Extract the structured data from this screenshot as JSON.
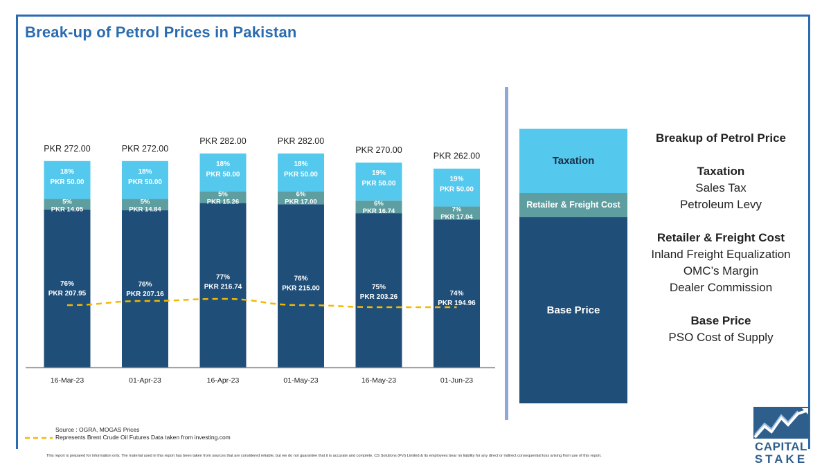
{
  "header": {
    "title": "Break-up of Petrol Prices in Pakistan"
  },
  "colors": {
    "taxation": "#55c8ed",
    "retailer": "#5f9ea0",
    "base": "#1f4e79",
    "brent_line": "#f5b800",
    "title": "#2b6cb0"
  },
  "chart_data": {
    "type": "bar",
    "stacked": true,
    "categories": [
      "16-Mar-23",
      "01-Apr-23",
      "16-Apr-23",
      "01-May-23",
      "16-May-23",
      "01-Jun-23"
    ],
    "totals_labels": [
      "PKR 272.00",
      "PKR 272.00",
      "PKR 282.00",
      "PKR 282.00",
      "PKR 270.00",
      "PKR 262.00"
    ],
    "series": [
      {
        "name": "Base Price",
        "values": [
          207.95,
          207.16,
          216.74,
          215.0,
          203.26,
          194.96
        ],
        "value_labels": [
          "PKR 207.95",
          "PKR 207.16",
          "PKR 216.74",
          "PKR 215.00",
          "PKR 203.26",
          "PKR 194.96"
        ],
        "pct_labels": [
          "76%",
          "76%",
          "77%",
          "76%",
          "75%",
          "74%"
        ]
      },
      {
        "name": "Retailer & Freight Cost",
        "values": [
          14.05,
          14.84,
          15.26,
          17.0,
          16.74,
          17.04
        ],
        "value_labels": [
          "PKR 14.05",
          "PKR 14.84",
          "PKR 15.26",
          "PKR 17.00",
          "PKR 16.74",
          "PKR 17.04"
        ],
        "pct_labels": [
          "5%",
          "5%",
          "5%",
          "6%",
          "6%",
          "7%"
        ]
      },
      {
        "name": "Taxation",
        "values": [
          50.0,
          50.0,
          50.0,
          50.0,
          50.0,
          50.0
        ],
        "value_labels": [
          "PKR 50.00",
          "PKR 50.00",
          "PKR 50.00",
          "PKR 50.00",
          "PKR 50.00",
          "PKR 50.00"
        ],
        "pct_labels": [
          "18%",
          "18%",
          "18%",
          "18%",
          "19%",
          "19%"
        ]
      }
    ],
    "brent_line": {
      "style": "dashed",
      "relative_level": [
        0.3,
        0.32,
        0.33,
        0.3,
        0.29,
        0.29
      ]
    },
    "ylim": [
      0,
      300
    ],
    "grid": false
  },
  "legend": {
    "taxation": "Taxation",
    "retailer": "Retailer & Freight Cost",
    "base": "Base Price"
  },
  "breakup": {
    "heading": "Breakup of Petrol Price",
    "taxation_title": "Taxation",
    "taxation_items": [
      "Sales Tax",
      "Petroleum Levy"
    ],
    "retailer_title": "Retailer & Freight Cost",
    "retailer_items": [
      "Inland Freight Equalization",
      "OMC’s Margin",
      "Dealer Commission"
    ],
    "base_title": "Base Price",
    "base_items": [
      "PSO Cost of Supply"
    ]
  },
  "footer": {
    "source": "Source : OGRA, MOGAS Prices",
    "line_legend": "Represents Brent Crude Oil Futures Data taken from investing.com",
    "disclaimer": "This report is prepared for information only. The material used in this report has been taken from sources that are considered reliable, but we do not guarantee that it is accurate and complete. CS Solutions (Pvt) Limited & its employees bear no liability for any direct or indirect consequential loss arising from use of this report."
  },
  "logo": {
    "line1": "CAPITAL",
    "line2": "STAKE"
  }
}
